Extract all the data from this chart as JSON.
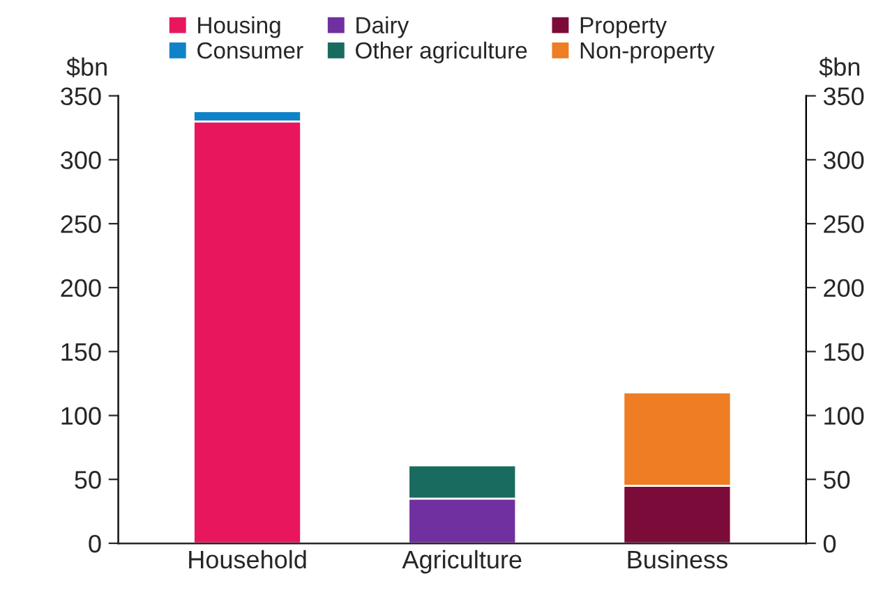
{
  "chart_data": {
    "type": "bar",
    "stacked": true,
    "categories": [
      "Household",
      "Agriculture",
      "Business"
    ],
    "series": [
      {
        "name": "Housing",
        "color": "#e8175d",
        "values": [
          330,
          null,
          null
        ]
      },
      {
        "name": "Consumer",
        "color": "#0f83c9",
        "values": [
          8,
          null,
          null
        ]
      },
      {
        "name": "Dairy",
        "color": "#7030a0",
        "values": [
          null,
          35,
          null
        ]
      },
      {
        "name": "Other agriculture",
        "color": "#1a6b5f",
        "values": [
          null,
          26,
          null
        ]
      },
      {
        "name": "Property",
        "color": "#7b0c3a",
        "values": [
          null,
          null,
          45
        ]
      },
      {
        "name": "Non-property",
        "color": "#ee7d23",
        "values": [
          null,
          null,
          73
        ]
      }
    ],
    "ylabel": "$bn",
    "y2label": "$bn",
    "ylim": [
      0,
      350
    ],
    "yticks": [
      0,
      50,
      100,
      150,
      200,
      250,
      300,
      350
    ],
    "y2lim": [
      0,
      350
    ],
    "y2ticks": [
      0,
      50,
      100,
      150,
      200,
      250,
      300,
      350
    ],
    "legend": "top",
    "grid": false
  }
}
